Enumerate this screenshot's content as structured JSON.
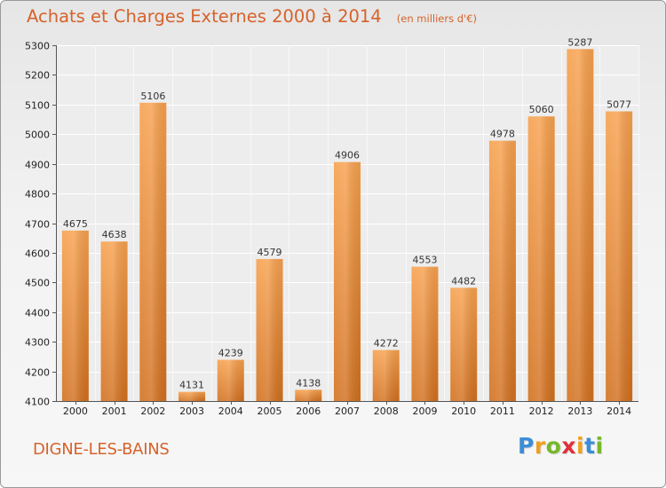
{
  "header": {
    "title": "Achats et Charges Externes 2000 à 2014",
    "unit": "(en milliers d'€)"
  },
  "footer": {
    "city": "DIGNE-LES-BAINS",
    "logo_letters": [
      {
        "char": "P",
        "color": "#3a8ed8"
      },
      {
        "char": "r",
        "color": "#f0a020"
      },
      {
        "char": "o",
        "color": "#77b82a"
      },
      {
        "char": "x",
        "color": "#e0303a"
      },
      {
        "char": "i",
        "color": "#f0a020"
      },
      {
        "char": "t",
        "color": "#3a8ed8"
      },
      {
        "char": "i",
        "color": "#77b82a"
      }
    ]
  },
  "chart_data": {
    "type": "bar",
    "categories": [
      "2000",
      "2001",
      "2002",
      "2003",
      "2004",
      "2005",
      "2006",
      "2007",
      "2008",
      "2009",
      "2010",
      "2011",
      "2012",
      "2013",
      "2014"
    ],
    "values": [
      4675,
      4638,
      5106,
      4131,
      4239,
      4579,
      4138,
      4906,
      4272,
      4553,
      4482,
      4978,
      5060,
      5287,
      5077
    ],
    "ylim": [
      4100,
      5300
    ],
    "yticks": [
      4100,
      4200,
      4300,
      4400,
      4500,
      4600,
      4700,
      4800,
      4900,
      5000,
      5100,
      5200,
      5300
    ],
    "grid": true,
    "bar_color_top": "#f7a14e",
    "bar_color_bottom": "#d2701e"
  }
}
